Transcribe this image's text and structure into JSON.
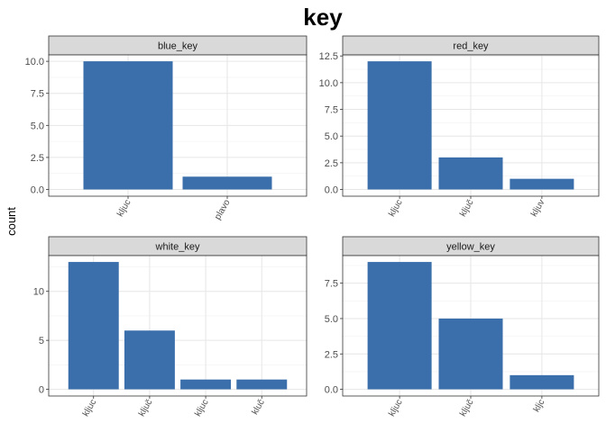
{
  "chart_data": {
    "type": "bar",
    "title": "key",
    "ylabel": "count",
    "xlabel": "",
    "bar_color": "#3A6FAB",
    "grid": true,
    "panels": [
      {
        "name": "blue_key",
        "categories": [
          "kljuc",
          "plavo"
        ],
        "values": [
          10,
          1
        ],
        "ylim": [
          0,
          10.5
        ],
        "yticks": [
          0,
          2.5,
          5,
          7.5,
          10
        ],
        "ytick_labels": [
          "0.0",
          "2.5",
          "5.0",
          "7.5",
          "10.0"
        ]
      },
      {
        "name": "red_key",
        "categories": [
          "kljuc",
          "ključ",
          "kljuv"
        ],
        "values": [
          12,
          3,
          1
        ],
        "ylim": [
          0,
          12.6
        ],
        "yticks": [
          0,
          2.5,
          5,
          7.5,
          10,
          12.5
        ],
        "ytick_labels": [
          "0.0",
          "2.5",
          "5.0",
          "7.5",
          "10.0",
          "12.5"
        ]
      },
      {
        "name": "white_key",
        "categories": [
          "kljuc",
          "ključ",
          "kljuc",
          "kluč"
        ],
        "values": [
          13,
          6,
          1,
          1
        ],
        "ylim": [
          0,
          13.65
        ],
        "yticks": [
          0,
          5,
          10
        ],
        "ytick_labels": [
          "0",
          "5",
          "10"
        ]
      },
      {
        "name": "yellow_key",
        "categories": [
          "kljuc",
          "ključ",
          "kljc"
        ],
        "values": [
          9,
          5,
          1
        ],
        "ylim": [
          0,
          9.45
        ],
        "yticks": [
          0,
          2.5,
          5,
          7.5
        ],
        "ytick_labels": [
          "0.0",
          "2.5",
          "5.0",
          "7.5"
        ]
      }
    ]
  }
}
